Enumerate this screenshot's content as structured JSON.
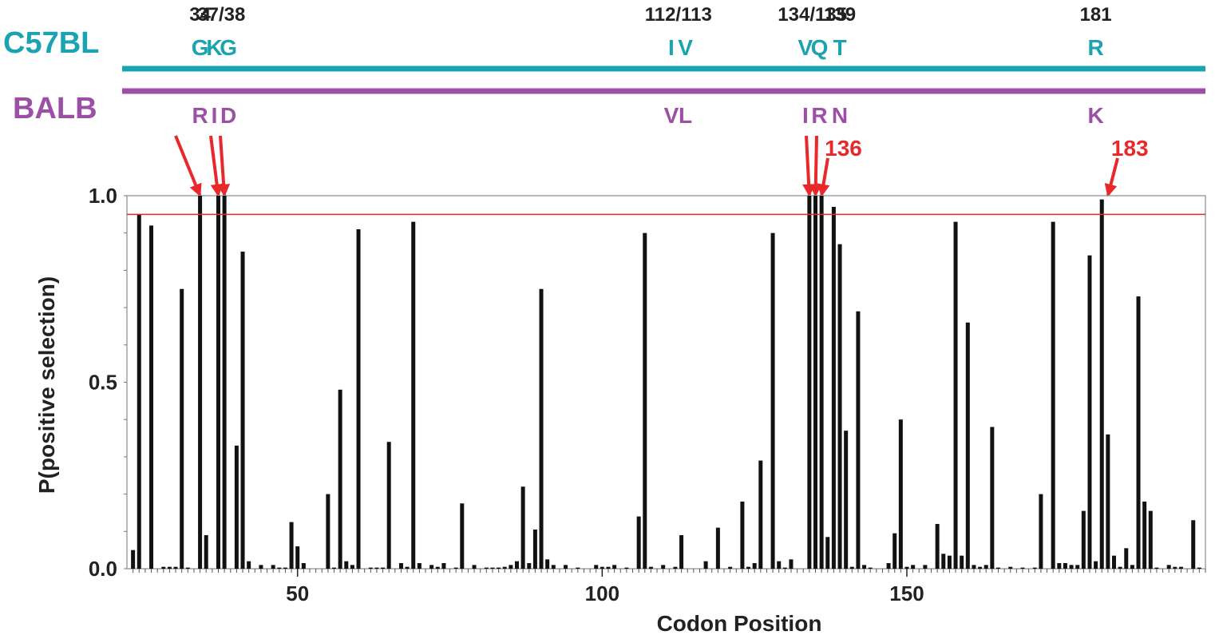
{
  "header": {
    "c57_name": "C57BL",
    "balb_name": "BALB",
    "c57_color": "#1aa3b0",
    "balb_color": "#9b4fa5",
    "arrow_color": "#e8282b",
    "position_labels": [
      {
        "text": "34",
        "codon": 34
      },
      {
        "text": "37/38",
        "codon": 37.5
      },
      {
        "text": "112/113",
        "codon": 112.5
      },
      {
        "text": "134/135",
        "codon": 134.5
      },
      {
        "text": "139",
        "codon": 139
      },
      {
        "text": "181",
        "codon": 181
      }
    ],
    "c57_residues": [
      {
        "aa": "G",
        "codon": 34
      },
      {
        "aa": "K",
        "codon": 37
      },
      {
        "aa": "G",
        "codon": 38
      },
      {
        "aa": "I",
        "codon": 112
      },
      {
        "aa": "V",
        "codon": 113
      },
      {
        "aa": "V",
        "codon": 134
      },
      {
        "aa": "Q",
        "codon": 135
      },
      {
        "aa": "T",
        "codon": 139
      },
      {
        "aa": "R",
        "codon": 181
      }
    ],
    "balb_residues": [
      {
        "aa": "R",
        "codon": 34
      },
      {
        "aa": "I",
        "codon": 37
      },
      {
        "aa": "D",
        "codon": 38
      },
      {
        "aa": "V",
        "codon": 112
      },
      {
        "aa": "L",
        "codon": 113
      },
      {
        "aa": "I",
        "codon": 134
      },
      {
        "aa": "R",
        "codon": 135
      },
      {
        "aa": "N",
        "codon": 139
      },
      {
        "aa": "K",
        "codon": 181
      }
    ],
    "extra_site_labels": [
      {
        "text": "136",
        "codon": 136
      },
      {
        "text": "183",
        "codon": 183
      }
    ]
  },
  "chart_data": {
    "type": "bar",
    "title": "",
    "xlabel": "Codon Position",
    "ylabel": "P(positive selection)",
    "xlim": [
      22,
      199
    ],
    "ylim": [
      0,
      1.0
    ],
    "xticks": [
      50,
      100,
      150
    ],
    "yticks": [
      0.0,
      0.5,
      1.0
    ],
    "ytick_labels": [
      "0.0",
      "0.5",
      "1.0"
    ],
    "threshold": 0.95,
    "threshold_color": "#e8282b",
    "bar_color": "#111111",
    "x": [
      23,
      24,
      26,
      28,
      29,
      30,
      31,
      32,
      34,
      35,
      37,
      38,
      40,
      41,
      42,
      44,
      46,
      47,
      48,
      49,
      50,
      51,
      55,
      56,
      57,
      58,
      59,
      60,
      62,
      63,
      64,
      65,
      67,
      68,
      69,
      70,
      72,
      73,
      74,
      76,
      77,
      79,
      81,
      82,
      83,
      84,
      85,
      86,
      87,
      88,
      89,
      90,
      91,
      92,
      94,
      96,
      99,
      100,
      101,
      102,
      104,
      106,
      107,
      108,
      110,
      112,
      113,
      117,
      119,
      121,
      123,
      124,
      125,
      126,
      128,
      129,
      130,
      131,
      134,
      135,
      136,
      137,
      138,
      139,
      140,
      141,
      142,
      143,
      144,
      147,
      148,
      149,
      150,
      151,
      153,
      155,
      156,
      157,
      158,
      159,
      160,
      161,
      162,
      163,
      164,
      165,
      167,
      169,
      171,
      172,
      174,
      175,
      176,
      177,
      178,
      179,
      180,
      181,
      182,
      183,
      184,
      185,
      186,
      187,
      188,
      189,
      190,
      191,
      193,
      194,
      195,
      197,
      198
    ],
    "values": [
      0.05,
      0.95,
      0.92,
      0.005,
      0.005,
      0.005,
      0.75,
      0.003,
      1.0,
      0.09,
      1.0,
      1.0,
      0.33,
      0.85,
      0.02,
      0.01,
      0.01,
      0.003,
      0.003,
      0.125,
      0.06,
      0.015,
      0.2,
      0.003,
      0.48,
      0.02,
      0.01,
      0.91,
      0.003,
      0.003,
      0.003,
      0.34,
      0.015,
      0.005,
      0.93,
      0.015,
      0.01,
      0.005,
      0.015,
      0.003,
      0.175,
      0.01,
      0.003,
      0.003,
      0.003,
      0.005,
      0.01,
      0.02,
      0.22,
      0.015,
      0.105,
      0.75,
      0.025,
      0.01,
      0.01,
      0.003,
      0.01,
      0.005,
      0.005,
      0.01,
      0.003,
      0.14,
      0.9,
      0.005,
      0.01,
      0.005,
      0.09,
      0.02,
      0.11,
      0.005,
      0.18,
      0.005,
      0.015,
      0.29,
      0.9,
      0.02,
      0.003,
      0.025,
      1.0,
      1.0,
      1.0,
      0.085,
      0.97,
      0.87,
      0.37,
      0.005,
      0.69,
      0.01,
      0.003,
      0.015,
      0.095,
      0.4,
      0.005,
      0.01,
      0.01,
      0.12,
      0.04,
      0.035,
      0.93,
      0.035,
      0.66,
      0.01,
      0.005,
      0.01,
      0.38,
      0.003,
      0.005,
      0.003,
      0.003,
      0.2,
      0.93,
      0.015,
      0.015,
      0.01,
      0.01,
      0.155,
      0.84,
      0.02,
      0.99,
      0.36,
      0.035,
      0.005,
      0.055,
      0.01,
      0.73,
      0.18,
      0.155,
      0.003,
      0.01,
      0.005,
      0.005,
      0.13,
      0.003
    ]
  }
}
